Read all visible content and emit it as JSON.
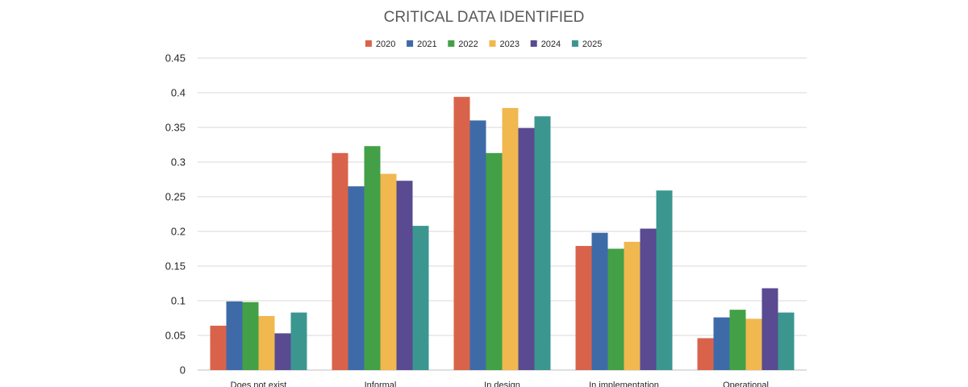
{
  "chart_data": {
    "type": "bar",
    "title": "CRITICAL DATA IDENTIFIED",
    "xlabel": "",
    "ylabel": "",
    "categories": [
      "Does not exist",
      "Informal",
      "In design",
      "In implementation",
      "Operational"
    ],
    "series": [
      {
        "name": "2020",
        "color": "#d9634a",
        "values": [
          0.064,
          0.313,
          0.394,
          0.179,
          0.046
        ]
      },
      {
        "name": "2021",
        "color": "#3e6ba8",
        "values": [
          0.099,
          0.265,
          0.36,
          0.198,
          0.076
        ]
      },
      {
        "name": "2022",
        "color": "#43a047",
        "values": [
          0.098,
          0.323,
          0.313,
          0.175,
          0.087
        ]
      },
      {
        "name": "2023",
        "color": "#f0b84f",
        "values": [
          0.078,
          0.283,
          0.378,
          0.185,
          0.074
        ]
      },
      {
        "name": "2024",
        "color": "#594a91",
        "values": [
          0.053,
          0.273,
          0.349,
          0.204,
          0.118
        ]
      },
      {
        "name": "2025",
        "color": "#3b9690",
        "values": [
          0.083,
          0.208,
          0.366,
          0.259,
          0.083
        ]
      }
    ],
    "ylim": [
      0,
      0.45
    ],
    "yticks": [
      0,
      0.05,
      0.1,
      0.15,
      0.2,
      0.25,
      0.3,
      0.35,
      0.4,
      0.45
    ],
    "ytick_labels": [
      "0",
      "0.05",
      "0.1",
      "0.15",
      "0.2",
      "0.25",
      "0.3",
      "0.35",
      "0.4",
      "0.45"
    ],
    "grid": true,
    "legend_position": "top"
  }
}
